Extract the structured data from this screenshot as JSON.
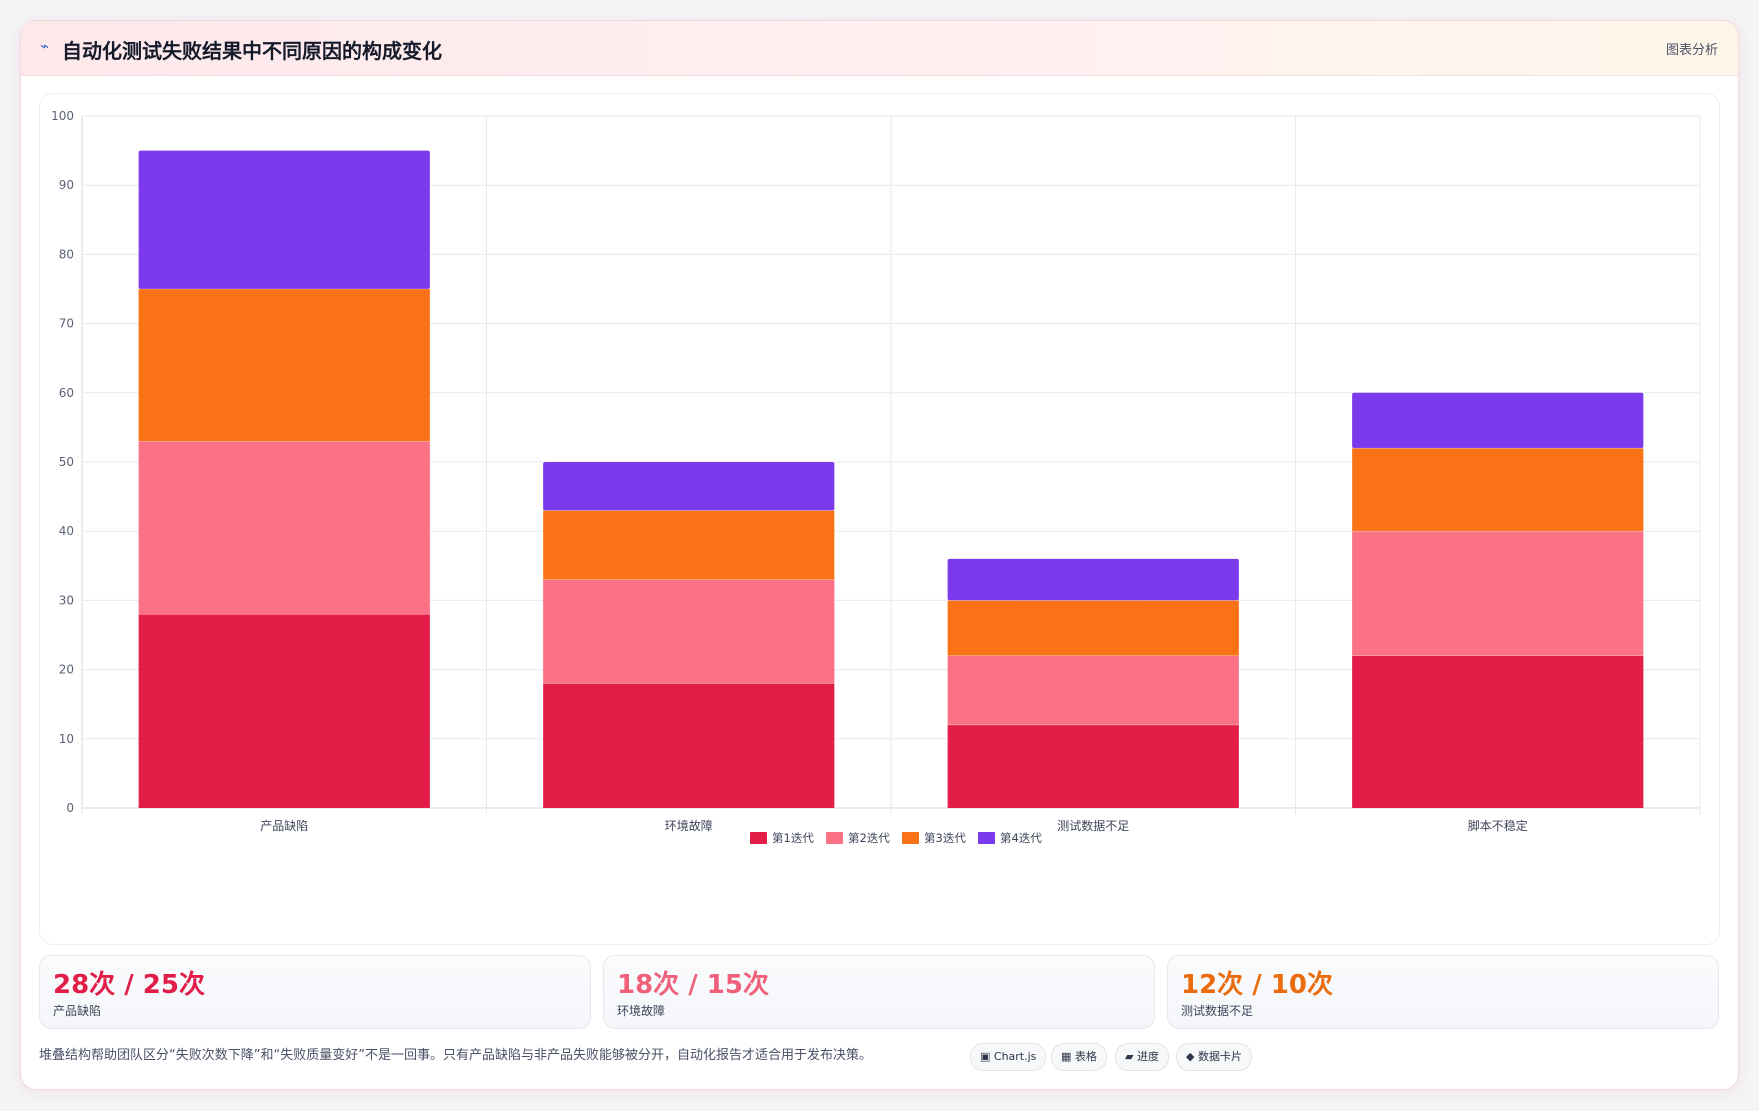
{
  "header": {
    "icon": "lightning-icon",
    "title": "自动化测试失败结果中不同原因的构成变化",
    "tag": "图表分析"
  },
  "chart_data": {
    "type": "bar",
    "stacked": true,
    "categories": [
      "产品缺陷",
      "环境故障",
      "测试数据不足",
      "脚本不稳定"
    ],
    "series": [
      {
        "name": "第1迭代",
        "color": "#e11d48",
        "values": [
          28,
          18,
          12,
          22
        ]
      },
      {
        "name": "第2迭代",
        "color": "#fb7185",
        "values": [
          25,
          15,
          10,
          18
        ]
      },
      {
        "name": "第3迭代",
        "color": "#f97316",
        "values": [
          22,
          10,
          8,
          12
        ]
      },
      {
        "name": "第4迭代",
        "color": "#7c3aed",
        "values": [
          20,
          7,
          6,
          8
        ]
      }
    ],
    "ylim": [
      0,
      100
    ],
    "yticks": [
      0,
      10,
      20,
      30,
      40,
      50,
      60,
      70,
      80,
      90,
      100
    ],
    "grid": true,
    "legend": "bottom"
  },
  "stats": [
    {
      "value": "28次 / 25次",
      "label": "产品缺陷",
      "color": "#e11d48"
    },
    {
      "value": "18次 / 15次",
      "label": "环境故障",
      "color": "#f0607a"
    },
    {
      "value": "12次 / 10次",
      "label": "测试数据不足",
      "color": "#ea6c0c"
    }
  ],
  "footer": {
    "note": "堆叠结构帮助团队区分“失败次数下降”和“失败质量变好”不是一回事。只有产品缺陷与非产品失败能够被分开，自动化报告才适合用于发布决策。",
    "chips": [
      "▣ Chart.js",
      "▦ 表格",
      "▰ 进度",
      "◆ 数据卡片"
    ]
  }
}
